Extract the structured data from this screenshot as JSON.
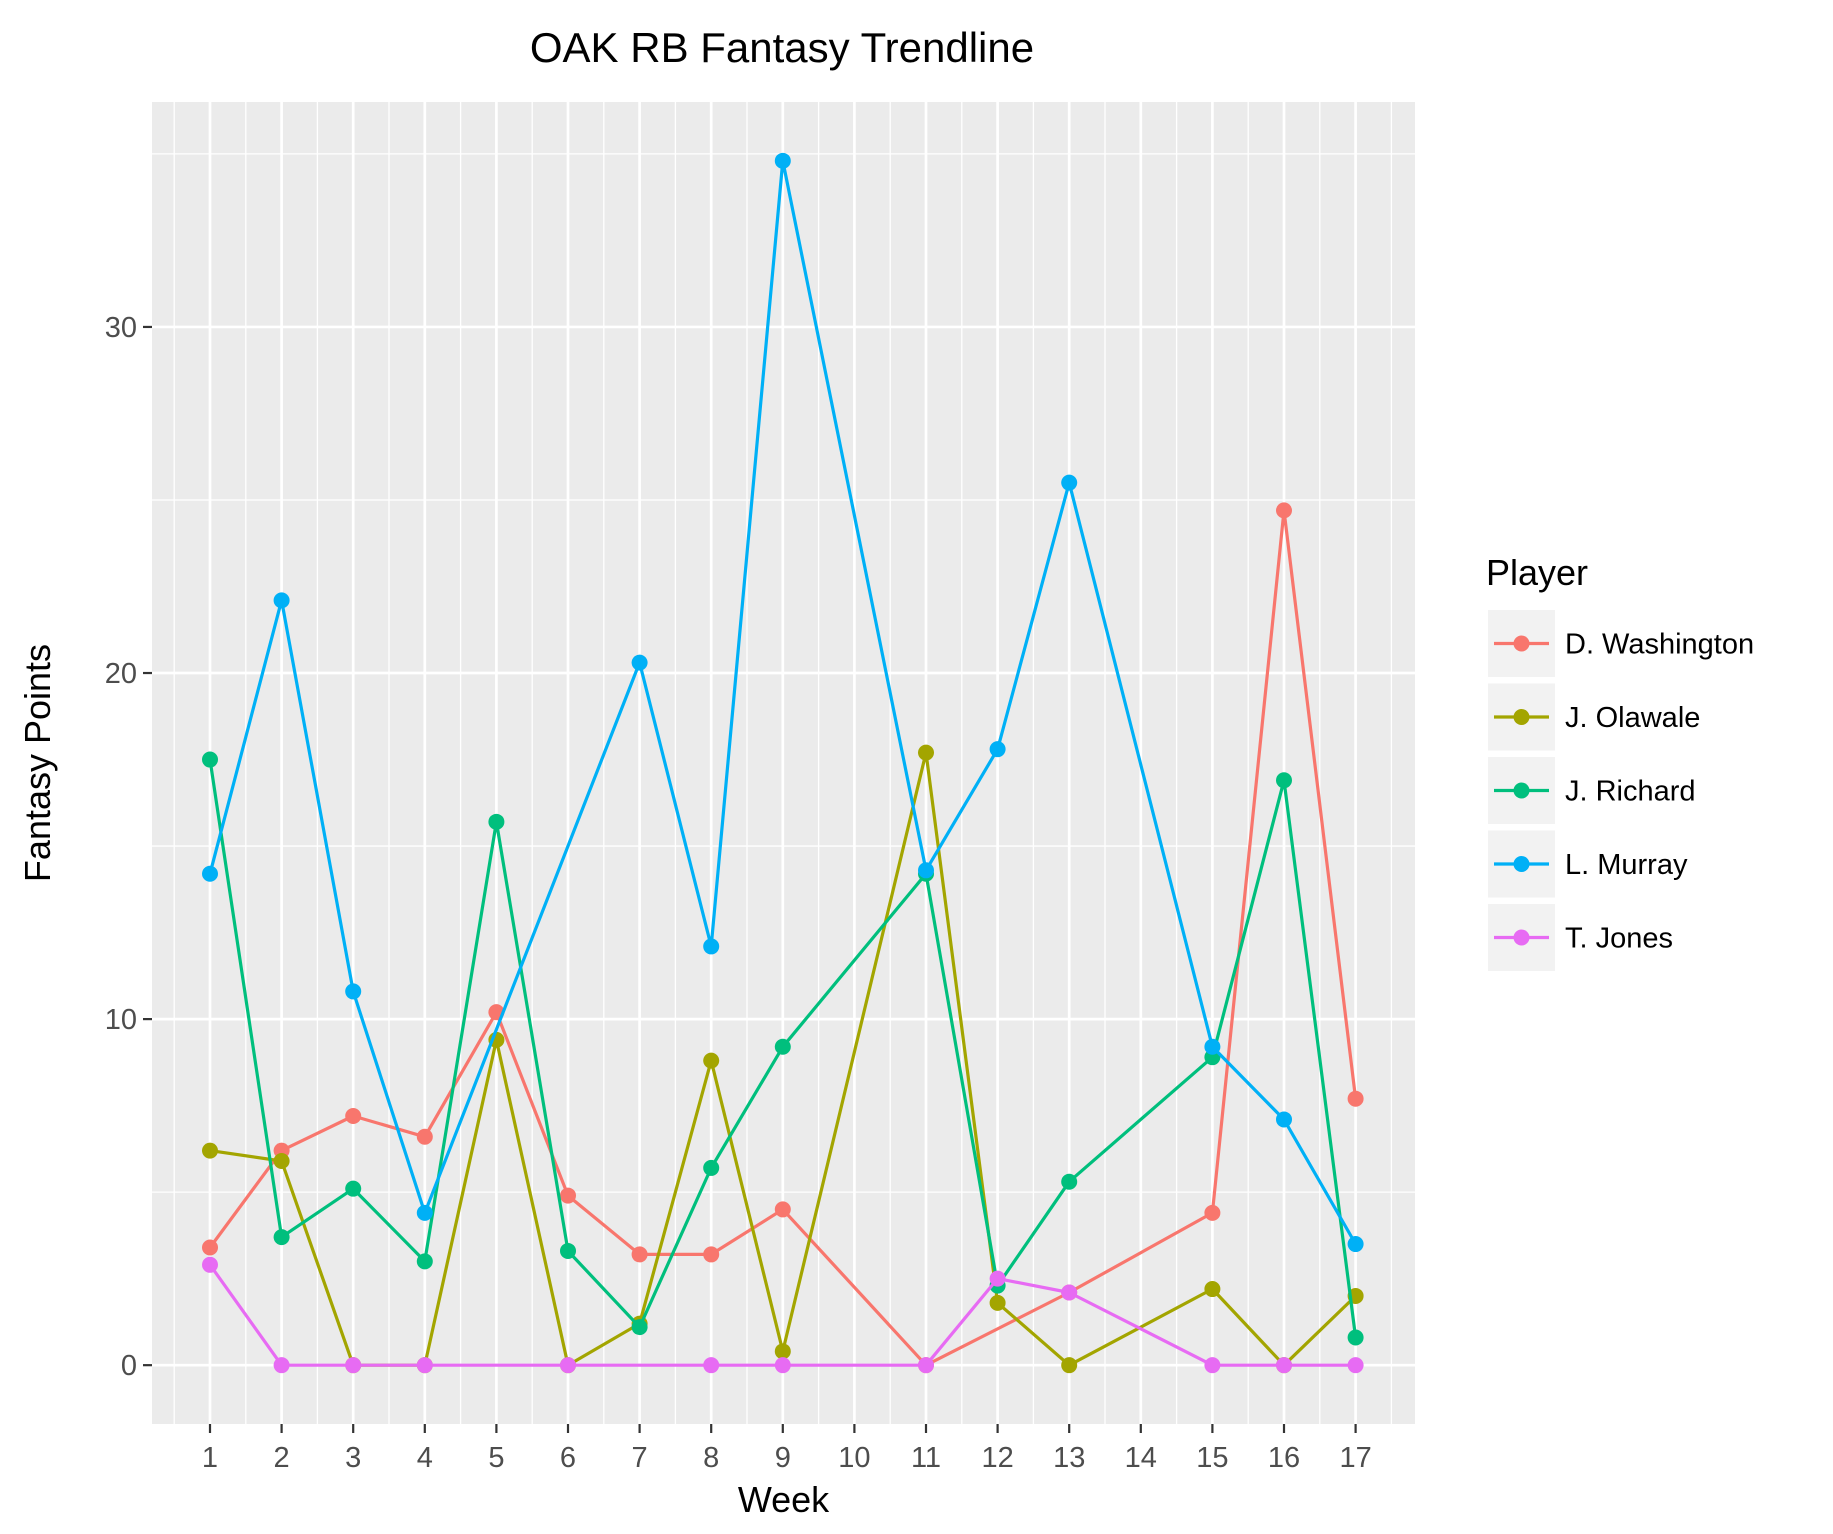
{
  "chart_data": {
    "type": "line",
    "title": "OAK RB Fantasy Trendline",
    "xlabel": "Week",
    "ylabel": "Fantasy Points",
    "categories": [
      "1",
      "2",
      "3",
      "4",
      "5",
      "6",
      "7",
      "8",
      "9",
      "10",
      "11",
      "12",
      "13",
      "14",
      "15",
      "16",
      "17"
    ],
    "y_ticks": [
      "0",
      "10",
      "20",
      "30"
    ],
    "ylim": [
      -1.7,
      36.5
    ],
    "grid": true,
    "legend": {
      "title": "Player",
      "position": "right"
    },
    "series": [
      {
        "name": "D. Washington",
        "color": "#F8766D",
        "points": [
          [
            1,
            3.4
          ],
          [
            2,
            6.2
          ],
          [
            3,
            7.2
          ],
          [
            4,
            6.6
          ],
          [
            5,
            10.2
          ],
          [
            6,
            4.9
          ],
          [
            7,
            3.2
          ],
          [
            8,
            3.2
          ],
          [
            9,
            4.5
          ],
          [
            11,
            0
          ],
          [
            13,
            2.1
          ],
          [
            15,
            4.4
          ],
          [
            16,
            24.7
          ],
          [
            17,
            7.7
          ]
        ]
      },
      {
        "name": "J. Olawale",
        "color": "#A3A500",
        "points": [
          [
            1,
            6.2
          ],
          [
            2,
            5.9
          ],
          [
            3,
            0
          ],
          [
            4,
            0
          ],
          [
            5,
            9.4
          ],
          [
            6,
            0
          ],
          [
            7,
            1.2
          ],
          [
            8,
            8.8
          ],
          [
            9,
            0.4
          ],
          [
            11,
            17.7
          ],
          [
            12,
            1.8
          ],
          [
            13,
            0
          ],
          [
            15,
            2.2
          ],
          [
            16,
            0
          ],
          [
            17,
            2.0
          ]
        ]
      },
      {
        "name": "J. Richard",
        "color": "#00BF7D",
        "points": [
          [
            1,
            17.5
          ],
          [
            2,
            3.7
          ],
          [
            3,
            5.1
          ],
          [
            4,
            3.0
          ],
          [
            5,
            15.7
          ],
          [
            6,
            3.3
          ],
          [
            7,
            1.1
          ],
          [
            8,
            5.7
          ],
          [
            9,
            9.2
          ],
          [
            11,
            14.2
          ],
          [
            12,
            2.3
          ],
          [
            13,
            5.3
          ],
          [
            15,
            8.9
          ],
          [
            16,
            16.9
          ],
          [
            17,
            0.8
          ]
        ]
      },
      {
        "name": "L. Murray",
        "color": "#00B0F6",
        "points": [
          [
            1,
            14.2
          ],
          [
            2,
            22.1
          ],
          [
            3,
            10.8
          ],
          [
            4,
            4.4
          ],
          [
            7,
            20.3
          ],
          [
            8,
            12.1
          ],
          [
            9,
            34.8
          ],
          [
            11,
            14.3
          ],
          [
            12,
            17.8
          ],
          [
            13,
            25.5
          ],
          [
            15,
            9.2
          ],
          [
            16,
            7.1
          ],
          [
            17,
            3.5
          ]
        ]
      },
      {
        "name": "T. Jones",
        "color": "#E76BF3",
        "points": [
          [
            1,
            2.9
          ],
          [
            2,
            0
          ],
          [
            3,
            0
          ],
          [
            4,
            0
          ],
          [
            6,
            0
          ],
          [
            8,
            0
          ],
          [
            9,
            0
          ],
          [
            11,
            0
          ],
          [
            12,
            2.5
          ],
          [
            13,
            2.1
          ],
          [
            15,
            0
          ],
          [
            16,
            0
          ],
          [
            17,
            0
          ]
        ]
      }
    ]
  }
}
